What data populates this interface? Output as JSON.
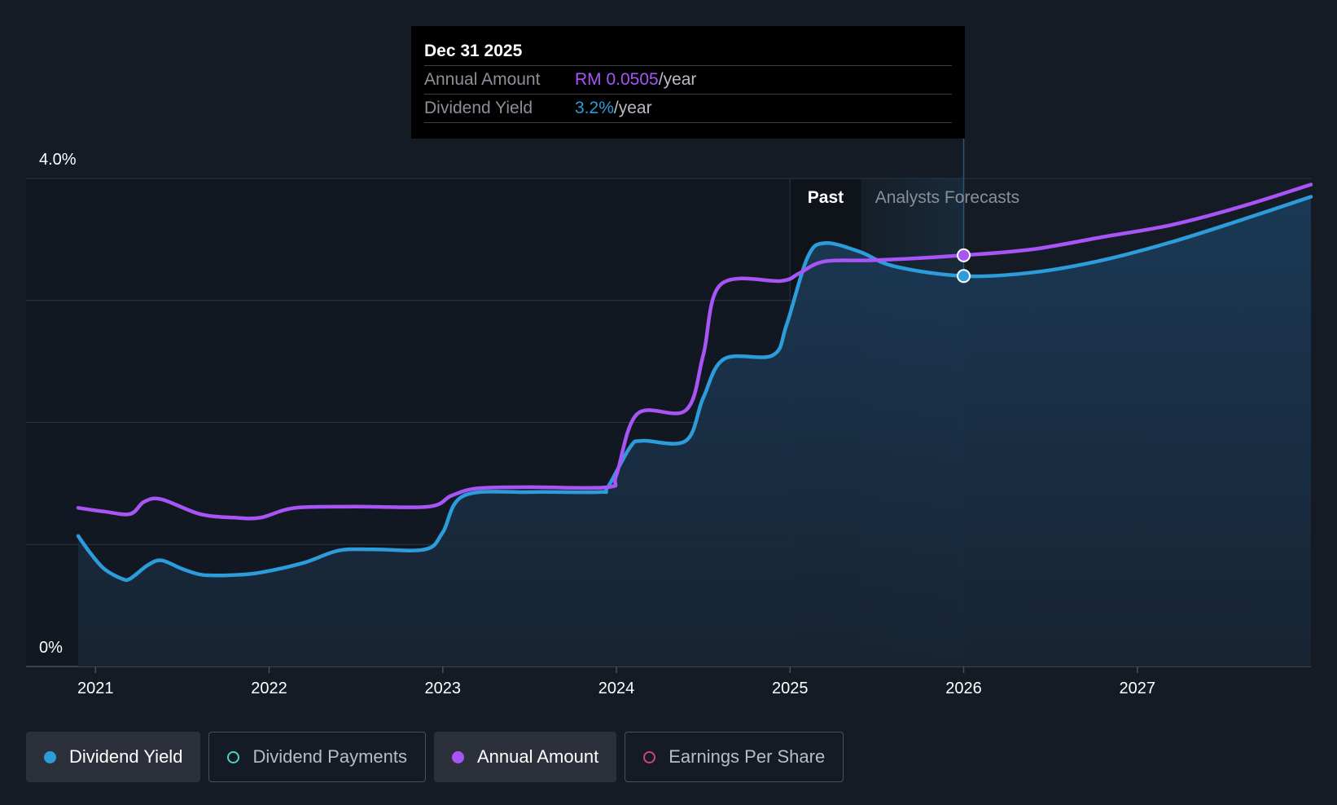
{
  "tooltip": {
    "date": "Dec 31 2025",
    "annual_label": "Annual Amount",
    "annual_value": "RM 0.0505",
    "annual_unit": "/year",
    "yield_label": "Dividend Yield",
    "yield_value": "3.2%",
    "yield_unit": "/year"
  },
  "regions": {
    "past_label": "Past",
    "forecast_label": "Analysts Forecasts"
  },
  "legend": [
    {
      "label": "Dividend Yield",
      "color": "#2d9cdb",
      "active": true,
      "filled": true
    },
    {
      "label": "Dividend Payments",
      "color": "#4fd1c5",
      "active": false,
      "filled": false
    },
    {
      "label": "Annual Amount",
      "color": "#a855f7",
      "active": true,
      "filled": true
    },
    {
      "label": "Earnings Per Share",
      "color": "#d0437e",
      "active": false,
      "filled": false
    }
  ],
  "colors": {
    "background": "#151b24",
    "yield_line": "#2d9cdb",
    "annual_line": "#a855f7",
    "grid": "#2e3440"
  },
  "chart_data": {
    "type": "line",
    "ylim": [
      0,
      4.0
    ],
    "xlim": [
      2020.6,
      2028.0
    ],
    "y_ticks": [
      {
        "value": 4.0,
        "label": "4.0%"
      },
      {
        "value": 0,
        "label": "0%"
      }
    ],
    "x_ticks": [
      {
        "value": 2021,
        "label": "2021"
      },
      {
        "value": 2022,
        "label": "2022"
      },
      {
        "value": 2023,
        "label": "2023"
      },
      {
        "value": 2024,
        "label": "2024"
      },
      {
        "value": 2025,
        "label": "2025"
      },
      {
        "value": 2026,
        "label": "2026"
      },
      {
        "value": 2027,
        "label": "2027"
      }
    ],
    "past_start": 2025.0,
    "past_end": 2025.41,
    "marker_x": 2026.0,
    "series": [
      {
        "name": "Dividend Yield",
        "color": "#2d9cdb",
        "filled": true,
        "points": [
          [
            2020.9,
            1.07
          ],
          [
            2020.97,
            0.93
          ],
          [
            2021.05,
            0.8
          ],
          [
            2021.15,
            0.72
          ],
          [
            2021.2,
            0.72
          ],
          [
            2021.3,
            0.83
          ],
          [
            2021.38,
            0.87
          ],
          [
            2021.5,
            0.8
          ],
          [
            2021.62,
            0.75
          ],
          [
            2021.8,
            0.75
          ],
          [
            2021.95,
            0.77
          ],
          [
            2022.2,
            0.85
          ],
          [
            2022.4,
            0.95
          ],
          [
            2022.6,
            0.96
          ],
          [
            2022.9,
            0.96
          ],
          [
            2023.0,
            1.1
          ],
          [
            2023.12,
            1.4
          ],
          [
            2023.5,
            1.43
          ],
          [
            2023.9,
            1.43
          ],
          [
            2023.95,
            1.47
          ],
          [
            2024.08,
            1.8
          ],
          [
            2024.15,
            1.85
          ],
          [
            2024.4,
            1.85
          ],
          [
            2024.5,
            2.2
          ],
          [
            2024.62,
            2.52
          ],
          [
            2024.9,
            2.55
          ],
          [
            2024.98,
            2.8
          ],
          [
            2025.1,
            3.35
          ],
          [
            2025.2,
            3.47
          ],
          [
            2025.4,
            3.4
          ],
          [
            2025.6,
            3.28
          ],
          [
            2026.0,
            3.2
          ],
          [
            2026.4,
            3.23
          ],
          [
            2026.8,
            3.33
          ],
          [
            2027.2,
            3.48
          ],
          [
            2027.6,
            3.66
          ],
          [
            2028.0,
            3.85
          ]
        ]
      },
      {
        "name": "Annual Amount",
        "color": "#a855f7",
        "filled": false,
        "points": [
          [
            2020.9,
            1.3
          ],
          [
            2021.05,
            1.27
          ],
          [
            2021.2,
            1.25
          ],
          [
            2021.28,
            1.35
          ],
          [
            2021.38,
            1.37
          ],
          [
            2021.6,
            1.25
          ],
          [
            2021.8,
            1.22
          ],
          [
            2021.95,
            1.22
          ],
          [
            2022.15,
            1.3
          ],
          [
            2022.5,
            1.31
          ],
          [
            2022.92,
            1.31
          ],
          [
            2023.05,
            1.4
          ],
          [
            2023.2,
            1.46
          ],
          [
            2023.5,
            1.47
          ],
          [
            2023.95,
            1.47
          ],
          [
            2024.0,
            1.57
          ],
          [
            2024.12,
            2.07
          ],
          [
            2024.4,
            2.1
          ],
          [
            2024.5,
            2.55
          ],
          [
            2024.6,
            3.13
          ],
          [
            2024.95,
            3.16
          ],
          [
            2025.05,
            3.22
          ],
          [
            2025.2,
            3.32
          ],
          [
            2025.5,
            3.33
          ],
          [
            2026.0,
            3.37
          ],
          [
            2026.4,
            3.42
          ],
          [
            2026.8,
            3.52
          ],
          [
            2027.2,
            3.62
          ],
          [
            2027.6,
            3.77
          ],
          [
            2028.0,
            3.95
          ]
        ]
      }
    ]
  }
}
